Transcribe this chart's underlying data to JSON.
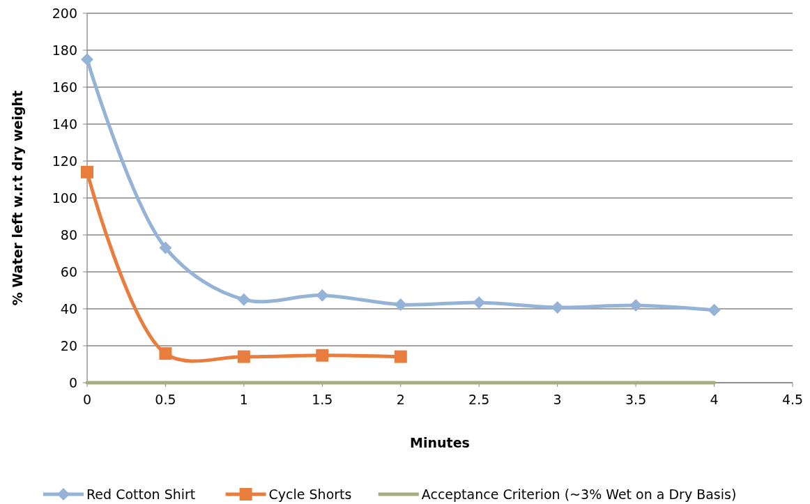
{
  "chart_data": {
    "type": "line",
    "xlabel": "Minutes",
    "ylabel": "% Water left w.r.t dry weight",
    "xlim": [
      0,
      4.5
    ],
    "xticks": [
      0,
      0.5,
      1,
      1.5,
      2,
      2.5,
      3,
      3.5,
      4,
      4.5
    ],
    "ylim": [
      0,
      200
    ],
    "yticks": [
      0,
      20,
      40,
      60,
      80,
      100,
      120,
      140,
      160,
      180,
      200
    ],
    "grid": "y",
    "legend": "bottom",
    "series": [
      {
        "name": "Red Cotton Shirt",
        "color": "#95b3d7",
        "marker": "diamond",
        "x": [
          0,
          0.5,
          1,
          1.5,
          2,
          2.5,
          3,
          3.5,
          4
        ],
        "values": [
          175,
          73,
          45,
          47.3,
          42.3,
          43.4,
          40.8,
          41.9,
          39.3
        ]
      },
      {
        "name": "Cycle Shorts",
        "color": "#e87d3e",
        "marker": "square",
        "x": [
          0,
          0.5,
          1,
          1.5,
          2
        ],
        "values": [
          114,
          15.8,
          14.1,
          14.8,
          14.1
        ]
      },
      {
        "name": "Acceptance Criterion (~3% Wet on a Dry Basis)",
        "color": "#a6ae7e",
        "marker": "none",
        "x": [
          0,
          0.5,
          1,
          1.5,
          2,
          2.5,
          3,
          3.5,
          4
        ],
        "values": [
          0,
          0,
          0,
          0,
          0,
          0,
          0,
          0,
          0
        ]
      }
    ]
  }
}
